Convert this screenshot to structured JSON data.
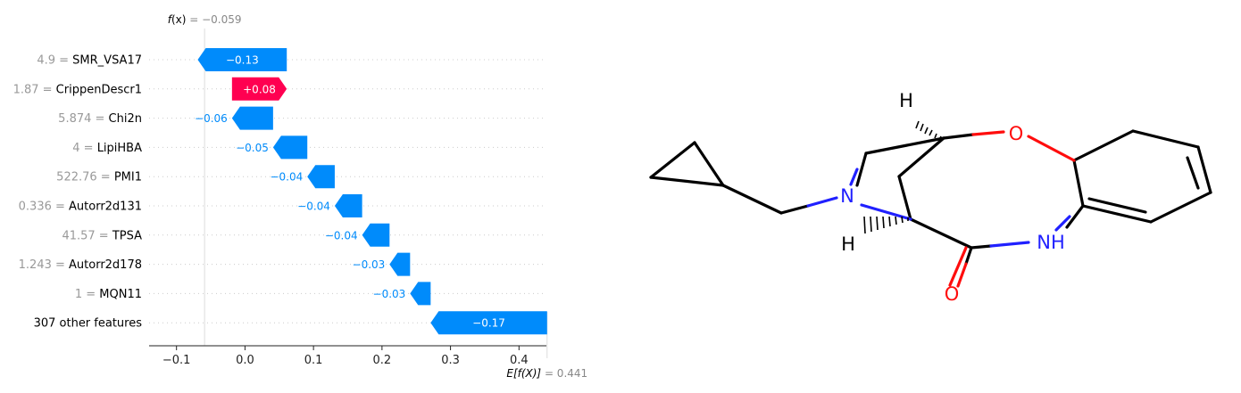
{
  "chart_data": {
    "type": "waterfall",
    "fx_label_fn": "f",
    "fx_label_arg": "(x)",
    "fx_value": "= −0.059",
    "ex_label_fn": "E[f(X)]",
    "ex_value": "= 0.441",
    "base_value": 0.441,
    "output_value": -0.059,
    "xlim": [
      -0.14,
      0.44
    ],
    "xticks": [
      -0.1,
      0.0,
      0.1,
      0.2,
      0.3,
      0.4
    ],
    "xtick_labels": [
      "−0.1",
      "0.0",
      "0.1",
      "0.2",
      "0.3",
      "0.4"
    ],
    "features": [
      {
        "value": "4.9",
        "name": "SMR_VSA17",
        "shap": -0.13,
        "label": "−0.13"
      },
      {
        "value": "1.87",
        "name": "CrippenDescr1",
        "shap": 0.08,
        "label": "+0.08"
      },
      {
        "value": "5.874",
        "name": "Chi2n",
        "shap": -0.06,
        "label": "−0.06"
      },
      {
        "value": "4",
        "name": "LipiHBA",
        "shap": -0.05,
        "label": "−0.05"
      },
      {
        "value": "522.76",
        "name": "PMI1",
        "shap": -0.04,
        "label": "−0.04"
      },
      {
        "value": "0.336",
        "name": "Autorr2d131",
        "shap": -0.04,
        "label": "−0.04"
      },
      {
        "value": "41.57",
        "name": "TPSA",
        "shap": -0.04,
        "label": "−0.04"
      },
      {
        "value": "1.243",
        "name": "Autorr2d178",
        "shap": -0.03,
        "label": "−0.03"
      },
      {
        "value": "1",
        "name": "MQN11",
        "shap": -0.03,
        "label": "−0.03"
      },
      {
        "value": "",
        "name": "307 other features",
        "shap": -0.17,
        "label": "−0.17"
      }
    ],
    "colors": {
      "negative": "#008bfb",
      "positive": "#ff0051",
      "value_text": "#999999",
      "name_text": "#000000"
    }
  },
  "molecule": {
    "atom_labels": {
      "o_ring": "O",
      "o_carbonyl": "O",
      "n_bridge": "N",
      "nh_amide": "NH",
      "h_top": "H",
      "h_bottom": "H"
    },
    "colors": {
      "carbon": "#000000",
      "oxygen": "#ff0d0d",
      "nitrogen": "#2020ff"
    }
  }
}
